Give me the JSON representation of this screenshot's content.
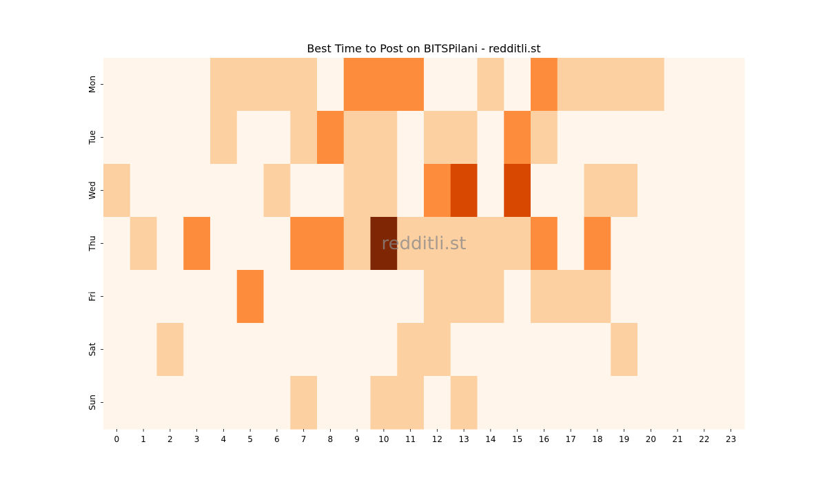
{
  "chart_data": {
    "type": "heatmap",
    "title": "Best Time to Post on BITSPilani - redditli.st",
    "watermark": "redditli.st",
    "xlabel": "",
    "ylabel": "",
    "x": [
      "0",
      "1",
      "2",
      "3",
      "4",
      "5",
      "6",
      "7",
      "8",
      "9",
      "10",
      "11",
      "12",
      "13",
      "14",
      "15",
      "16",
      "17",
      "18",
      "19",
      "20",
      "21",
      "22",
      "23"
    ],
    "y": [
      "Mon",
      "Tue",
      "Wed",
      "Thu",
      "Fri",
      "Sat",
      "Sun"
    ],
    "colormap": "Oranges",
    "levels": [
      "#fff5eb",
      "#fdd0a2",
      "#fd8d3c",
      "#d94801",
      "#7f2704"
    ],
    "values": [
      [
        0,
        0,
        0,
        0,
        1,
        1,
        1,
        1,
        0,
        2,
        2,
        2,
        0,
        0,
        1,
        0,
        2,
        1,
        1,
        1,
        1,
        0,
        0,
        0
      ],
      [
        0,
        0,
        0,
        0,
        1,
        0,
        0,
        1,
        2,
        1,
        1,
        0,
        1,
        1,
        0,
        2,
        1,
        0,
        0,
        0,
        0,
        0,
        0,
        0
      ],
      [
        1,
        0,
        0,
        0,
        0,
        0,
        1,
        0,
        0,
        1,
        1,
        0,
        2,
        3,
        0,
        3,
        0,
        0,
        1,
        1,
        0,
        0,
        0,
        0
      ],
      [
        0,
        1,
        0,
        2,
        0,
        0,
        0,
        2,
        2,
        1,
        4,
        1,
        1,
        1,
        1,
        1,
        2,
        0,
        2,
        0,
        0,
        0,
        0,
        0
      ],
      [
        0,
        0,
        0,
        0,
        0,
        2,
        0,
        0,
        0,
        0,
        0,
        0,
        1,
        1,
        1,
        0,
        1,
        1,
        1,
        0,
        0,
        0,
        0,
        0
      ],
      [
        0,
        0,
        1,
        0,
        0,
        0,
        0,
        0,
        0,
        0,
        0,
        1,
        1,
        0,
        0,
        0,
        0,
        0,
        0,
        1,
        0,
        0,
        0,
        0
      ],
      [
        0,
        0,
        0,
        0,
        0,
        0,
        0,
        1,
        0,
        0,
        1,
        1,
        0,
        1,
        0,
        0,
        0,
        0,
        0,
        0,
        0,
        0,
        0,
        0
      ]
    ]
  }
}
